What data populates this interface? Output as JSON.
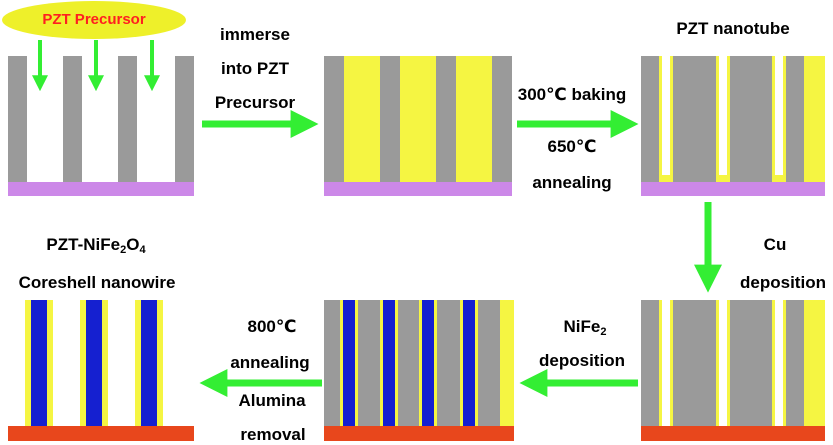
{
  "labels": {
    "precursor": "PZT Precursor",
    "immerse_1": "immerse",
    "immerse_2": "into PZT",
    "immerse_3": "Precursor",
    "nanotube": "PZT nanotube",
    "baking_temp": "300",
    "baking_unit": "℃ baking",
    "anneal_temp": "650",
    "anneal_unit": "℃",
    "annealing": "annealing",
    "cu": "Cu",
    "cu_deposition": "deposition",
    "nife_a": "NiFe",
    "nife_sub": "2",
    "nife_deposition": "deposition",
    "final_temp": "800",
    "final_unit": "℃",
    "final_annealing": "annealing",
    "alumina": "Alumina",
    "removal": "removal",
    "product_a": "PZT-NiFe",
    "product_sub1": "2",
    "product_b": "O",
    "product_sub2": "4",
    "coreshell": "Coreshell nanowire"
  },
  "colors": {
    "alumina_wall": "#9a9a9a",
    "pzt": "#f5f542",
    "substrate_purple": "#cc88e8",
    "substrate_red": "#e8471c",
    "nife": "#1520d0",
    "arrow": "#33ee33",
    "precursor_ellipse": "#eef02a"
  }
}
